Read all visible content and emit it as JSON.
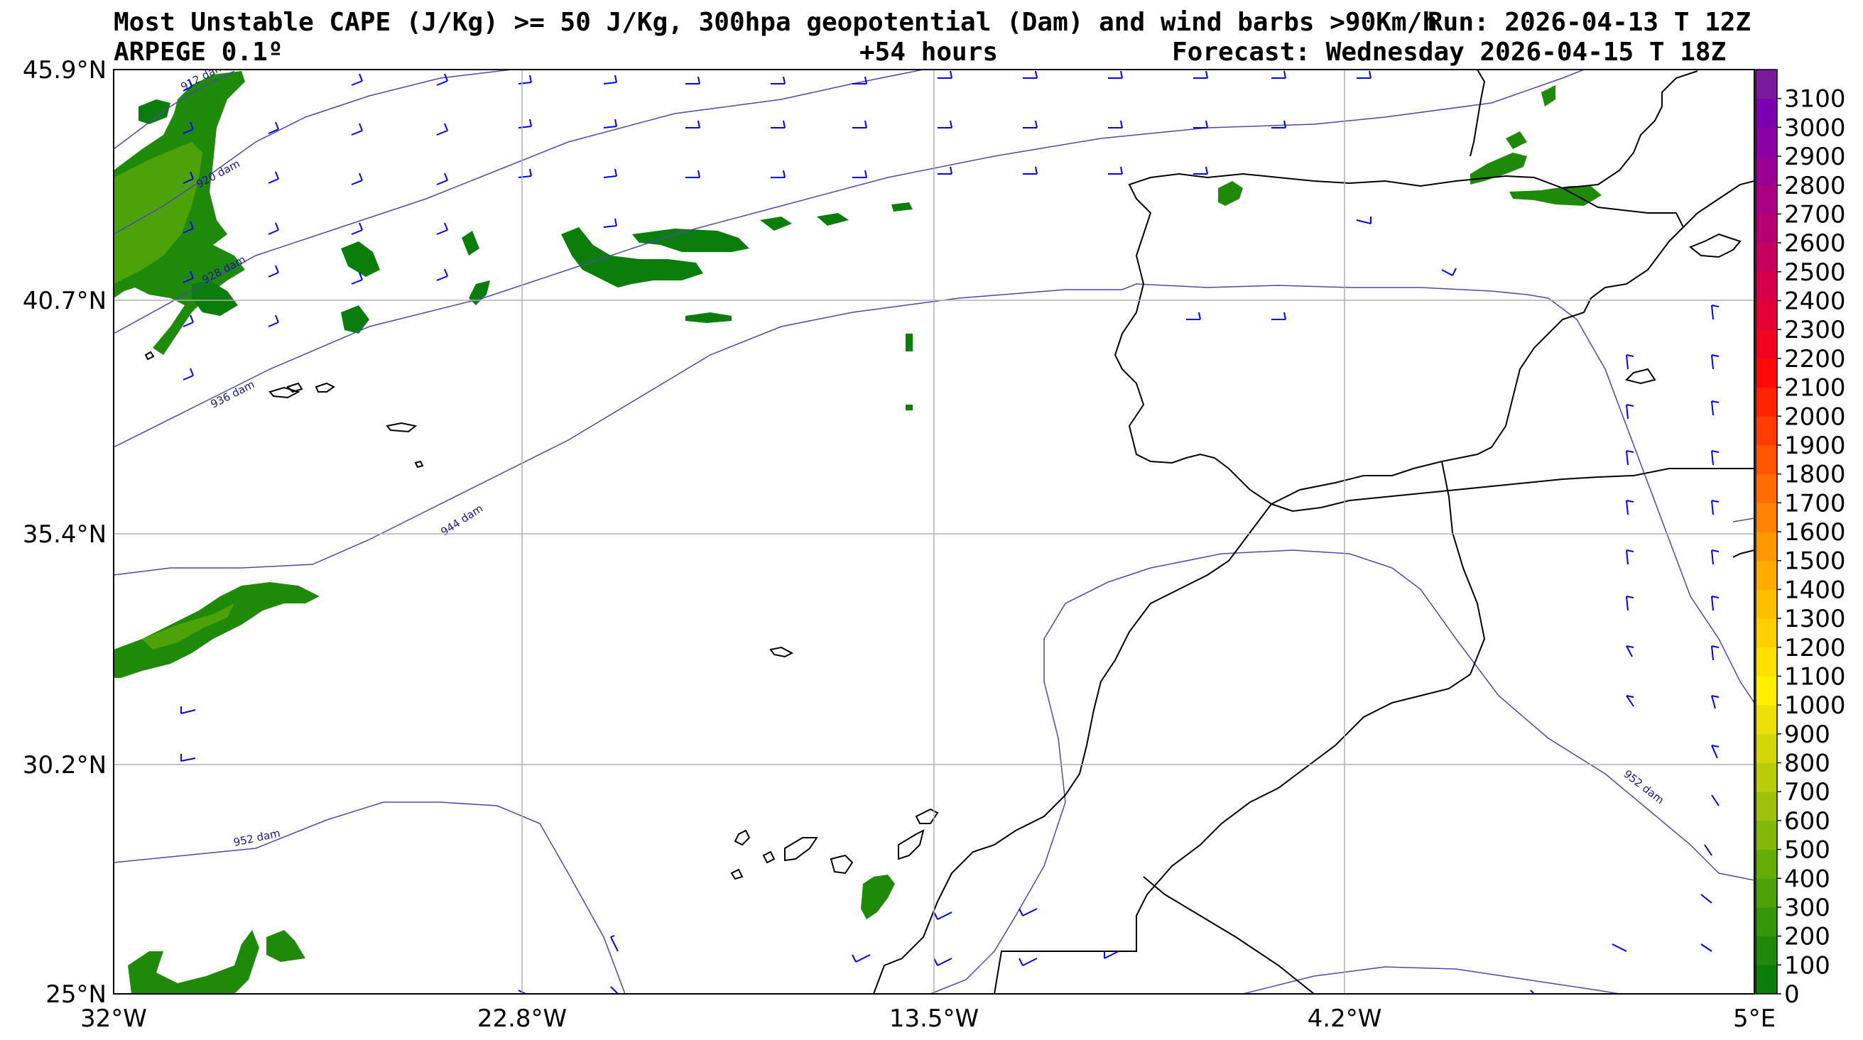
{
  "header": {
    "title_line1": "Most Unstable CAPE (J/Kg) >= 50 J/Kg, 300hpa geopotential (Dam) and wind barbs >90Km/h",
    "run": "Run: 2026-04-13 T 12Z",
    "model": "ARPEGE 0.1º",
    "lead": "+54 hours",
    "forecast": "Forecast: Wednesday 2026-04-15 T 18Z"
  },
  "axes": {
    "lat_labels": [
      "45.9°N",
      "40.7°N",
      "35.4°N",
      "30.2°N",
      "25°N"
    ],
    "lon_labels": [
      "32°W",
      "22.8°W",
      "13.5°W",
      "4.2°W",
      "5°E"
    ]
  },
  "colorbar": {
    "labels": [
      "0",
      "100",
      "200",
      "300",
      "400",
      "500",
      "600",
      "700",
      "800",
      "900",
      "1000",
      "1100",
      "1200",
      "1300",
      "1400",
      "1500",
      "1600",
      "1700",
      "1800",
      "1900",
      "2000",
      "2100",
      "2200",
      "2300",
      "2400",
      "2500",
      "2600",
      "2700",
      "2800",
      "2900",
      "3000",
      "3100"
    ],
    "colors": [
      "#0a7d0a",
      "#1f8a0a",
      "#35960a",
      "#4da20a",
      "#66ad0a",
      "#82b80a",
      "#9ec20a",
      "#b9cc0a",
      "#d3d60a",
      "#ecdf0a",
      "#fff000",
      "#ffe100",
      "#ffd000",
      "#ffbe00",
      "#ffab00",
      "#ff9700",
      "#ff8200",
      "#ff6c00",
      "#ff5500",
      "#ff3d00",
      "#ff2400",
      "#fc0a0a",
      "#ef0520",
      "#e20235",
      "#d4004a",
      "#c5005e",
      "#b60071",
      "#a70082",
      "#980093",
      "#8a00a2",
      "#7c00b0",
      "#7a1a9c"
    ]
  },
  "contours": {
    "labels": [
      "912 dam",
      "920 dam",
      "928 dam",
      "936 dam",
      "944 dam",
      "952 dam",
      "952 dam"
    ]
  },
  "colors": {
    "cape_dark": "#0a7d0a",
    "cape_mid": "#3a960a",
    "cape_light": "#5aa80a",
    "contour": "#4a4aaa",
    "barb": "#0000ee",
    "coast": "#000000",
    "grid": "#b0b0b0"
  }
}
